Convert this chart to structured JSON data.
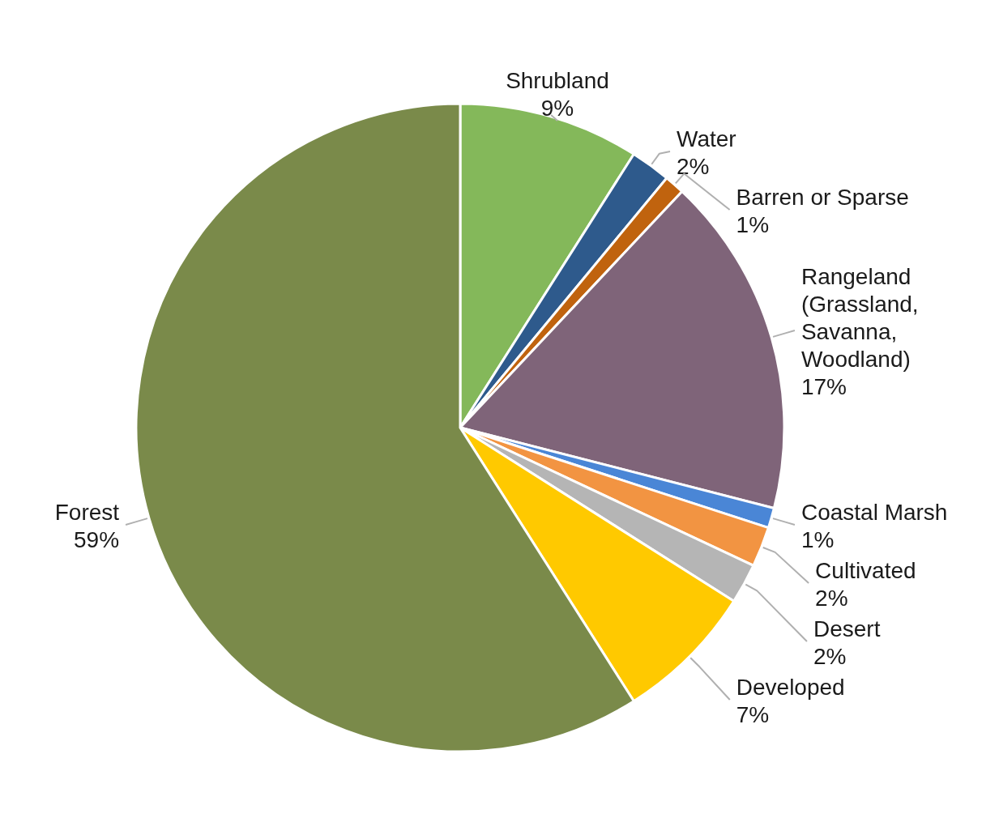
{
  "chart_data": {
    "type": "pie",
    "categories": [
      "Shrubland",
      "Water",
      "Barren or Sparse",
      "Rangeland (Grassland, Savanna, Woodland)",
      "Coastal Marsh",
      "Cultivated",
      "Desert",
      "Developed",
      "Forest"
    ],
    "values": [
      9,
      2,
      1,
      17,
      1,
      2,
      2,
      7,
      59
    ],
    "value_labels": [
      "9%",
      "2%",
      "1%",
      "17%",
      "1%",
      "2%",
      "2%",
      "7%",
      "59%"
    ],
    "colors": [
      "#84b85a",
      "#2e5a8c",
      "#c0630e",
      "#7f6479",
      "#4a86d6",
      "#f29442",
      "#b5b5b5",
      "#ffc900",
      "#7a8a4a"
    ]
  }
}
